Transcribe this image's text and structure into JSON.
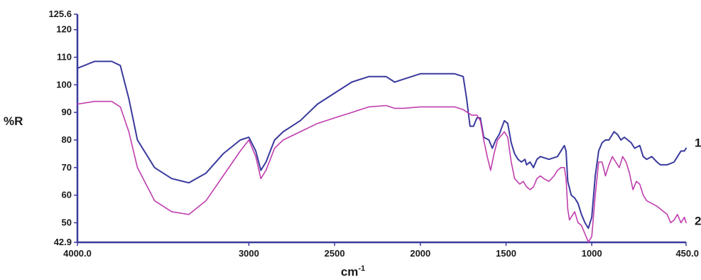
{
  "chart_data": {
    "type": "line",
    "title": "",
    "xlabel": "cm",
    "xlabel_superscript": "-1",
    "ylabel": "%R",
    "xlim": [
      4000,
      450
    ],
    "ylim": [
      42.9,
      125.6
    ],
    "x_ticks": [
      {
        "value": 4000,
        "label": "4000.0"
      },
      {
        "value": 3000,
        "label": "3000"
      },
      {
        "value": 2500,
        "label": "2500"
      },
      {
        "value": 2000,
        "label": "2000"
      },
      {
        "value": 1500,
        "label": "1500"
      },
      {
        "value": 1000,
        "label": "1000"
      },
      {
        "value": 450,
        "label": "450.0"
      }
    ],
    "y_ticks": [
      {
        "value": 125.6,
        "label": "125.6"
      },
      {
        "value": 120,
        "label": "120"
      },
      {
        "value": 110,
        "label": "110"
      },
      {
        "value": 100,
        "label": "100"
      },
      {
        "value": 90,
        "label": "90"
      },
      {
        "value": 80,
        "label": "80"
      },
      {
        "value": 70,
        "label": "70"
      },
      {
        "value": 60,
        "label": "60"
      },
      {
        "value": 50,
        "label": "50"
      },
      {
        "value": 42.9,
        "label": "42.9"
      }
    ],
    "grid": false,
    "legend": "none",
    "series": [
      {
        "name": "1",
        "color": "#3a3a9e",
        "points": [
          [
            4000,
            106
          ],
          [
            3900,
            108.5
          ],
          [
            3800,
            108.5
          ],
          [
            3750,
            107
          ],
          [
            3700,
            95
          ],
          [
            3650,
            80
          ],
          [
            3550,
            70
          ],
          [
            3450,
            66
          ],
          [
            3350,
            64.5
          ],
          [
            3250,
            68
          ],
          [
            3150,
            75
          ],
          [
            3050,
            80
          ],
          [
            3000,
            81
          ],
          [
            2960,
            76
          ],
          [
            2930,
            69
          ],
          [
            2900,
            72
          ],
          [
            2850,
            80
          ],
          [
            2800,
            83
          ],
          [
            2700,
            87
          ],
          [
            2600,
            93
          ],
          [
            2500,
            97
          ],
          [
            2400,
            101
          ],
          [
            2300,
            103
          ],
          [
            2200,
            103
          ],
          [
            2150,
            101
          ],
          [
            2100,
            102
          ],
          [
            2000,
            104
          ],
          [
            1900,
            104
          ],
          [
            1800,
            104
          ],
          [
            1750,
            103
          ],
          [
            1730,
            95
          ],
          [
            1710,
            85
          ],
          [
            1690,
            85
          ],
          [
            1670,
            88
          ],
          [
            1650,
            88
          ],
          [
            1630,
            81
          ],
          [
            1600,
            80
          ],
          [
            1580,
            77
          ],
          [
            1560,
            80
          ],
          [
            1540,
            82
          ],
          [
            1510,
            87
          ],
          [
            1490,
            86
          ],
          [
            1470,
            79
          ],
          [
            1450,
            75
          ],
          [
            1430,
            73
          ],
          [
            1410,
            72
          ],
          [
            1390,
            73
          ],
          [
            1380,
            71
          ],
          [
            1360,
            72
          ],
          [
            1340,
            70
          ],
          [
            1320,
            73
          ],
          [
            1300,
            74
          ],
          [
            1250,
            73
          ],
          [
            1200,
            74
          ],
          [
            1170,
            77
          ],
          [
            1160,
            78
          ],
          [
            1150,
            76
          ],
          [
            1140,
            65
          ],
          [
            1120,
            60
          ],
          [
            1100,
            59
          ],
          [
            1080,
            57
          ],
          [
            1060,
            53
          ],
          [
            1040,
            50
          ],
          [
            1020,
            48
          ],
          [
            1000,
            52
          ],
          [
            980,
            67
          ],
          [
            960,
            76
          ],
          [
            940,
            79
          ],
          [
            920,
            80
          ],
          [
            900,
            80
          ],
          [
            870,
            83
          ],
          [
            850,
            82
          ],
          [
            830,
            80
          ],
          [
            810,
            81
          ],
          [
            790,
            80
          ],
          [
            770,
            79
          ],
          [
            750,
            77
          ],
          [
            720,
            78
          ],
          [
            700,
            74
          ],
          [
            680,
            73
          ],
          [
            650,
            74
          ],
          [
            620,
            72
          ],
          [
            600,
            71
          ],
          [
            560,
            71
          ],
          [
            520,
            72
          ],
          [
            500,
            74
          ],
          [
            480,
            76
          ],
          [
            460,
            76
          ],
          [
            450,
            77
          ]
        ]
      },
      {
        "name": "2",
        "color": "#c03dae",
        "points": [
          [
            4000,
            93
          ],
          [
            3900,
            94
          ],
          [
            3800,
            94
          ],
          [
            3750,
            92
          ],
          [
            3700,
            83
          ],
          [
            3650,
            70
          ],
          [
            3550,
            58
          ],
          [
            3450,
            54
          ],
          [
            3350,
            53
          ],
          [
            3250,
            58
          ],
          [
            3150,
            67
          ],
          [
            3050,
            76
          ],
          [
            3000,
            80
          ],
          [
            2960,
            74
          ],
          [
            2930,
            66
          ],
          [
            2900,
            69
          ],
          [
            2850,
            77
          ],
          [
            2800,
            80
          ],
          [
            2700,
            83
          ],
          [
            2600,
            86
          ],
          [
            2500,
            88
          ],
          [
            2400,
            90
          ],
          [
            2300,
            92
          ],
          [
            2200,
            92.5
          ],
          [
            2150,
            91.5
          ],
          [
            2100,
            91.5
          ],
          [
            2000,
            92
          ],
          [
            1900,
            92
          ],
          [
            1800,
            92
          ],
          [
            1750,
            91
          ],
          [
            1700,
            89
          ],
          [
            1670,
            89
          ],
          [
            1650,
            87
          ],
          [
            1630,
            80
          ],
          [
            1610,
            74
          ],
          [
            1590,
            69
          ],
          [
            1570,
            75
          ],
          [
            1550,
            80
          ],
          [
            1510,
            83
          ],
          [
            1490,
            81
          ],
          [
            1470,
            72
          ],
          [
            1450,
            66
          ],
          [
            1420,
            64
          ],
          [
            1400,
            65
          ],
          [
            1380,
            63
          ],
          [
            1360,
            62
          ],
          [
            1340,
            63
          ],
          [
            1320,
            66
          ],
          [
            1300,
            67
          ],
          [
            1280,
            66
          ],
          [
            1250,
            65
          ],
          [
            1220,
            67
          ],
          [
            1200,
            69
          ],
          [
            1180,
            70
          ],
          [
            1160,
            70
          ],
          [
            1150,
            66
          ],
          [
            1140,
            55
          ],
          [
            1130,
            51
          ],
          [
            1110,
            53
          ],
          [
            1100,
            54
          ],
          [
            1080,
            50
          ],
          [
            1060,
            49
          ],
          [
            1040,
            46
          ],
          [
            1020,
            43
          ],
          [
            1000,
            45
          ],
          [
            980,
            60
          ],
          [
            960,
            72
          ],
          [
            940,
            72
          ],
          [
            920,
            67
          ],
          [
            900,
            71
          ],
          [
            880,
            74
          ],
          [
            860,
            72
          ],
          [
            840,
            70
          ],
          [
            820,
            74
          ],
          [
            800,
            72
          ],
          [
            780,
            68
          ],
          [
            760,
            62
          ],
          [
            740,
            65
          ],
          [
            720,
            64
          ],
          [
            700,
            60
          ],
          [
            680,
            58
          ],
          [
            650,
            57
          ],
          [
            620,
            56
          ],
          [
            600,
            55
          ],
          [
            560,
            53
          ],
          [
            540,
            50
          ],
          [
            520,
            51
          ],
          [
            500,
            53
          ],
          [
            480,
            50
          ],
          [
            460,
            52
          ],
          [
            450,
            50
          ]
        ]
      }
    ],
    "series_labels": [
      "1",
      "2"
    ]
  }
}
